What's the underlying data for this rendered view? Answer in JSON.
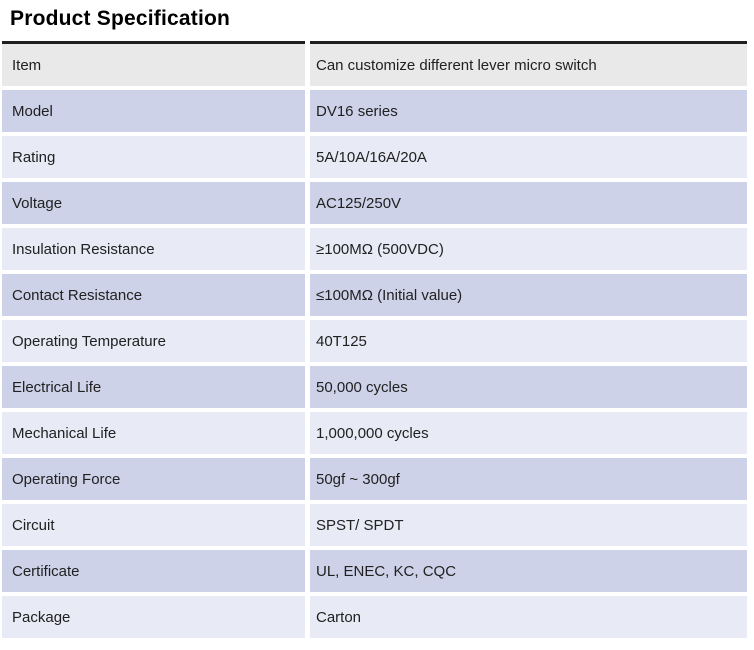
{
  "page": {
    "title": "Product Specification"
  },
  "colors": {
    "row_gray": "#e9e9e9",
    "row_dark": "#cdd2e9",
    "row_light": "#e8eaf6",
    "top_border": "#1f1f1f",
    "text": "#212121"
  },
  "table": {
    "rows": [
      {
        "label": "Item",
        "value": "Can customize different lever micro switch",
        "variant": "gray"
      },
      {
        "label": "Model",
        "value": "DV16 series",
        "variant": "dark"
      },
      {
        "label": "Rating",
        "value": "5A/10A/16A/20A",
        "variant": "light"
      },
      {
        "label": "Voltage",
        "value": "AC125/250V",
        "variant": "dark"
      },
      {
        "label": "Insulation Resistance",
        "value": "≥100MΩ (500VDC)",
        "variant": "light"
      },
      {
        "label": "Contact Resistance",
        "value": "≤100MΩ (Initial value)",
        "variant": "dark"
      },
      {
        "label": "Operating Temperature",
        "value": "40T125",
        "variant": "light"
      },
      {
        "label": "Electrical Life",
        "value": "50,000 cycles",
        "variant": "dark"
      },
      {
        "label": "Mechanical Life",
        "value": "1,000,000 cycles",
        "variant": "light"
      },
      {
        "label": "Operating Force",
        "value": "50gf ~ 300gf",
        "variant": "dark"
      },
      {
        "label": "Circuit",
        "value": "SPST/ SPDT",
        "variant": "light"
      },
      {
        "label": "Certificate",
        "value": "UL, ENEC, KC, CQC",
        "variant": "dark"
      },
      {
        "label": "Package",
        "value": "Carton",
        "variant": "light"
      }
    ]
  }
}
